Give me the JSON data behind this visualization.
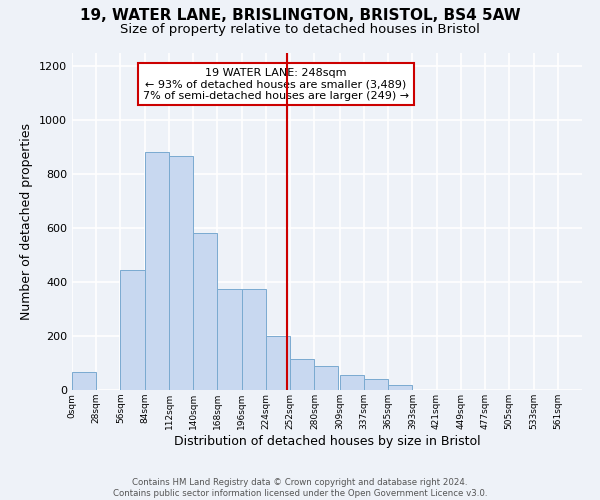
{
  "title": "19, WATER LANE, BRISLINGTON, BRISTOL, BS4 5AW",
  "subtitle": "Size of property relative to detached houses in Bristol",
  "xlabel": "Distribution of detached houses by size in Bristol",
  "ylabel": "Number of detached properties",
  "bar_left_edges": [
    0,
    28,
    56,
    84,
    112,
    140,
    168,
    196,
    224,
    252,
    280,
    309,
    337,
    365,
    393,
    421,
    449,
    477,
    505,
    533
  ],
  "bar_widths": [
    28,
    28,
    28,
    28,
    28,
    28,
    28,
    28,
    28,
    28,
    27,
    28,
    28,
    28,
    28,
    28,
    28,
    28,
    28,
    28
  ],
  "bar_heights": [
    65,
    0,
    445,
    880,
    865,
    580,
    375,
    375,
    200,
    115,
    90,
    55,
    40,
    20,
    0,
    0,
    0,
    0,
    0,
    0
  ],
  "bar_color": "#c8d8f0",
  "bar_edgecolor": "#7aaad0",
  "vline_x": 248,
  "vline_color": "#cc0000",
  "annotation_line1": "19 WATER LANE: 248sqm",
  "annotation_line2": "← 93% of detached houses are smaller (3,489)",
  "annotation_line3": "7% of semi-detached houses are larger (249) →",
  "annotation_box_edgecolor": "#cc0000",
  "annotation_box_facecolor": "#ffffff",
  "ylim": [
    0,
    1250
  ],
  "yticks": [
    0,
    200,
    400,
    600,
    800,
    1000,
    1200
  ],
  "xtick_labels": [
    "0sqm",
    "28sqm",
    "56sqm",
    "84sqm",
    "112sqm",
    "140sqm",
    "168sqm",
    "196sqm",
    "224sqm",
    "252sqm",
    "280sqm",
    "309sqm",
    "337sqm",
    "365sqm",
    "393sqm",
    "421sqm",
    "449sqm",
    "477sqm",
    "505sqm",
    "533sqm",
    "561sqm"
  ],
  "xtick_positions": [
    0,
    28,
    56,
    84,
    112,
    140,
    168,
    196,
    224,
    252,
    280,
    309,
    337,
    365,
    393,
    421,
    449,
    477,
    505,
    533,
    561
  ],
  "footer_text": "Contains HM Land Registry data © Crown copyright and database right 2024.\nContains public sector information licensed under the Open Government Licence v3.0.",
  "background_color": "#eef2f8",
  "plot_bg_color": "#eef2f8",
  "grid_color": "#ffffff",
  "title_fontsize": 11,
  "subtitle_fontsize": 9.5
}
